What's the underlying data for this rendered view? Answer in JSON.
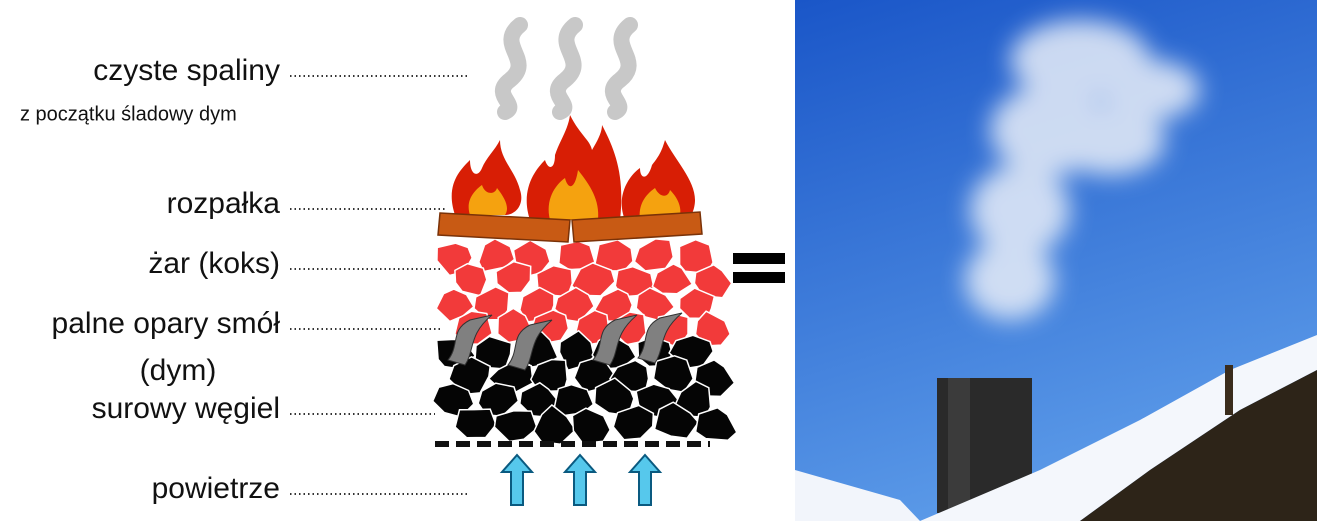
{
  "labels": [
    "czyste spaliny",
    "z początku śladowy dym",
    "rozpałka",
    "żar (koks)",
    "palne opary smół",
    "(dym)",
    "surowy węgiel",
    "powietrze"
  ]
}
